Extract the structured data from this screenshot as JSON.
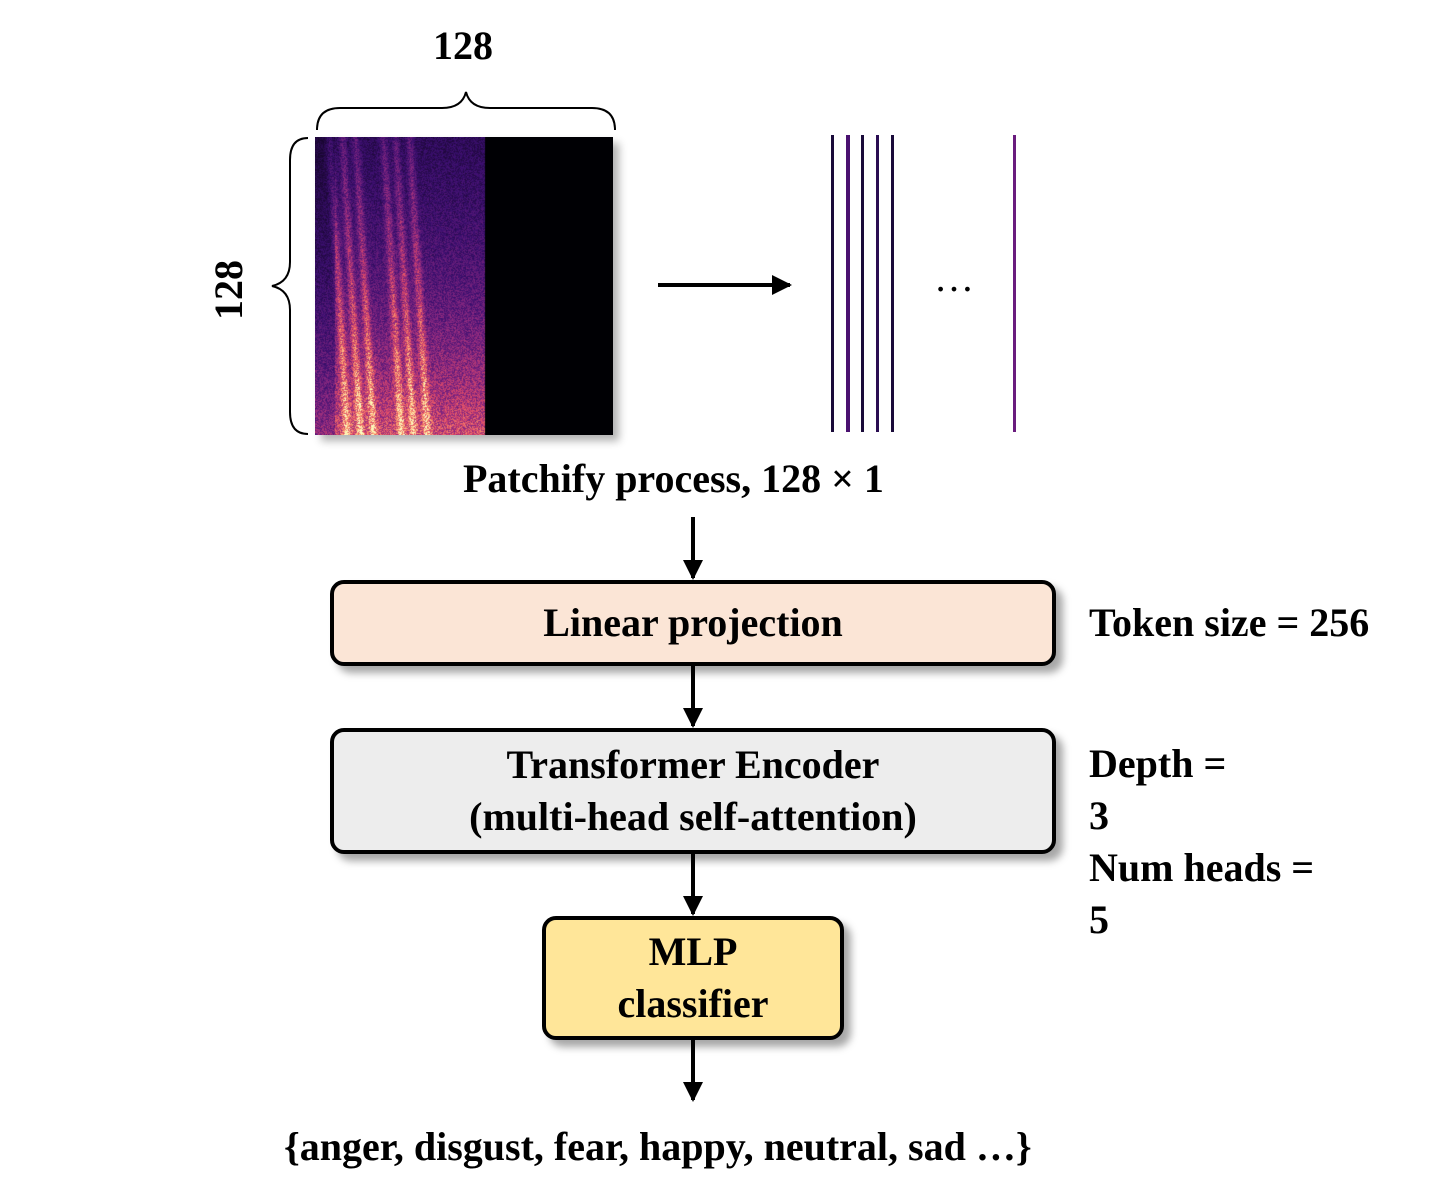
{
  "spectrogram": {
    "width_label": "128",
    "height_label": "128",
    "ellipsis": "…",
    "colormap": [
      "#000004",
      "#3b0f70",
      "#8c2981",
      "#de4968",
      "#fe9f6d",
      "#fcfdbf"
    ]
  },
  "patchify_label": "Patchify process, 128 × 1",
  "blocks": {
    "linear": {
      "label": "Linear projection",
      "color": "#fbe5d6"
    },
    "transformer": {
      "line1": "Transformer Encoder",
      "line2": "(multi-head self-attention)",
      "color": "#ededed"
    },
    "mlp": {
      "line1": "MLP",
      "line2": "classifier",
      "color": "#ffe699"
    }
  },
  "params": {
    "token_size": "Token size = 256",
    "depth_label": "Depth =",
    "depth_value": "3",
    "heads_label": "Num heads =",
    "heads_value": "5"
  },
  "output_classes": "{anger, disgust, fear, happy, neutral, sad …}"
}
